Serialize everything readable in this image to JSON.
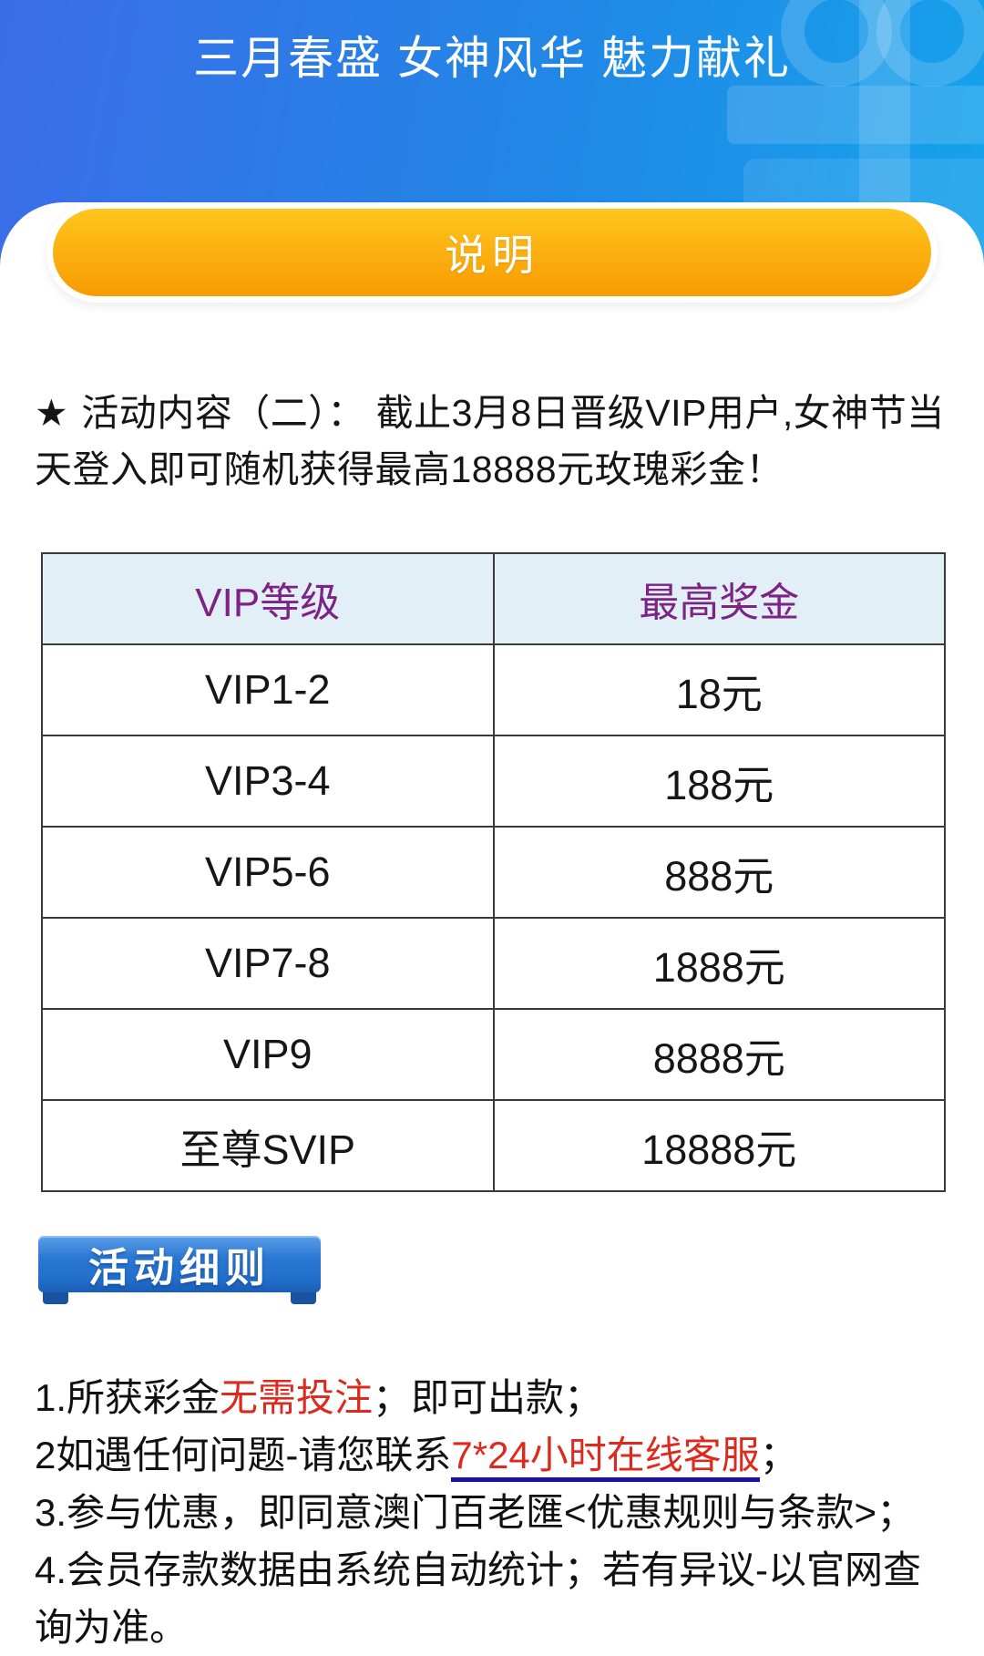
{
  "header": {
    "title": "三月春盛 女神风华 魅力献礼",
    "button_label": "说明"
  },
  "intro": {
    "star": "★",
    "text": "活动内容（二）： 截止3月8日晋级VIP用户,女神节当天登入即可随机获得最高18888元玫瑰彩金！"
  },
  "vip_table": {
    "headers": [
      "VIP等级",
      "最高奖金"
    ],
    "rows": [
      [
        "VIP1-2",
        "18元"
      ],
      [
        "VIP3-4",
        "188元"
      ],
      [
        "VIP5-6",
        "888元"
      ],
      [
        "VIP7-8",
        "1888元"
      ],
      [
        "VIP9",
        "8888元"
      ],
      [
        "至尊SVIP",
        "18888元"
      ]
    ]
  },
  "ribbon": {
    "label": "活动细则"
  },
  "rules": [
    {
      "parts": [
        {
          "text": "1.所获彩金",
          "style": "normal"
        },
        {
          "text": "无需投注",
          "style": "red"
        },
        {
          "text": "；即可出款；",
          "style": "normal"
        }
      ]
    },
    {
      "parts": [
        {
          "text": "2如遇任何问题-请您联系",
          "style": "normal"
        },
        {
          "text": "7*24小时在线客服",
          "style": "red-link"
        },
        {
          "text": "；",
          "style": "normal"
        }
      ]
    },
    {
      "parts": [
        {
          "text": "3.参与优惠，即同意澳门百老匯<优惠规则与条款>；",
          "style": "normal"
        }
      ]
    },
    {
      "parts": [
        {
          "text": "4.会员存款数据由系统自动统计；若有异议-以官网查询为准。",
          "style": "normal"
        }
      ]
    }
  ],
  "colors": {
    "header_gradient_start": "#3B6CE8",
    "header_gradient_end": "#15A3EC",
    "button_orange_top": "#FFC61F",
    "button_orange_bottom": "#F89B02",
    "table_header_bg": "#E3EFF7",
    "table_header_text": "#7E2386",
    "table_border": "#3A3A3A",
    "ribbon_blue": "#2B78D4",
    "highlight_red": "#DC2A1E",
    "link_underline_navy": "#1A12A8"
  }
}
